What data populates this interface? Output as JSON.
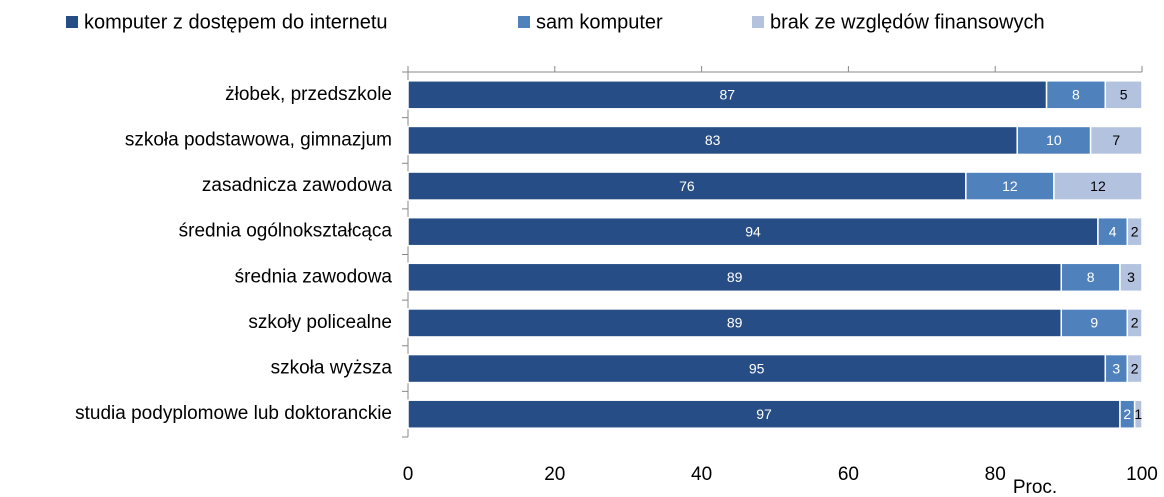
{
  "chart_data": {
    "type": "stacked_bar_horizontal",
    "categories": [
      "żłobek, przedszkole",
      "szkoła podstawowa, gimnazjum",
      "zasadnicza zawodowa",
      "średnia ogólnokształcąca",
      "średnia zawodowa",
      "szkoły policealne",
      "szkoła wyższa",
      "studia podyplomowe lub doktoranckie"
    ],
    "series": [
      {
        "name": "komputer z dostępem do internetu",
        "color": "#264d85",
        "values": [
          87,
          83,
          76,
          94,
          89,
          89,
          95,
          97
        ]
      },
      {
        "name": "sam komputer",
        "color": "#4f81bd",
        "values": [
          8,
          10,
          12,
          4,
          8,
          9,
          3,
          2
        ]
      },
      {
        "name": "brak ze względów finansowych",
        "color": "#b3c2de",
        "values": [
          5,
          7,
          12,
          2,
          3,
          2,
          2,
          1
        ]
      }
    ],
    "x_label": "Proc.",
    "xlim": [
      0,
      100
    ],
    "xticks": [
      0,
      20,
      40,
      60,
      80,
      100
    ],
    "legend": "top"
  }
}
